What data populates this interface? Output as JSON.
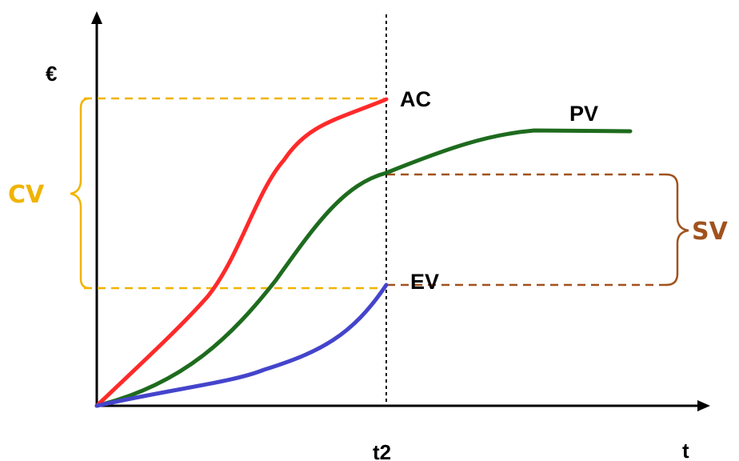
{
  "axes": {
    "y_label": "€",
    "x_label": "t",
    "t2_label": "t2"
  },
  "curves": {
    "ac": {
      "label": "AC",
      "color": "#ff2a2a"
    },
    "pv": {
      "label": "PV",
      "color": "#1e6b1e"
    },
    "ev": {
      "label": "EV",
      "color": "#4444cc"
    }
  },
  "variances": {
    "cv": {
      "label": "CV",
      "color": "#f0b400"
    },
    "sv": {
      "label": "SV",
      "color": "#a0521e"
    }
  }
}
